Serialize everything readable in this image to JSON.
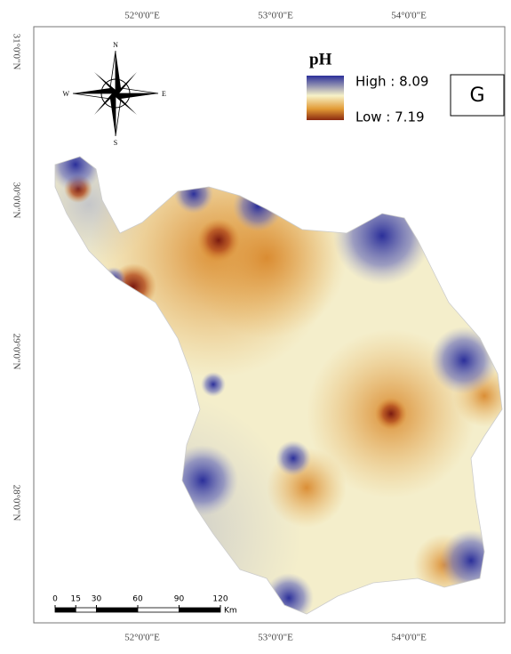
{
  "map": {
    "lon_labels": [
      "52°0'0\"E",
      "53°0'0\"E",
      "54°0'0\"E"
    ],
    "lat_labels": [
      "31°0'0\"N",
      "30°0'0\"N",
      "29°0'0\"N",
      "28°0'0\"N"
    ],
    "compass": {
      "n": "N",
      "s": "S",
      "e": "E",
      "w": "W"
    },
    "legend": {
      "title": "pH",
      "high": "High : 8.09",
      "low": "Low : 7.19"
    },
    "panel_label": "G",
    "scale_bar": {
      "ticks": [
        0,
        15,
        30,
        60,
        90,
        120
      ],
      "unit": "Km"
    }
  }
}
